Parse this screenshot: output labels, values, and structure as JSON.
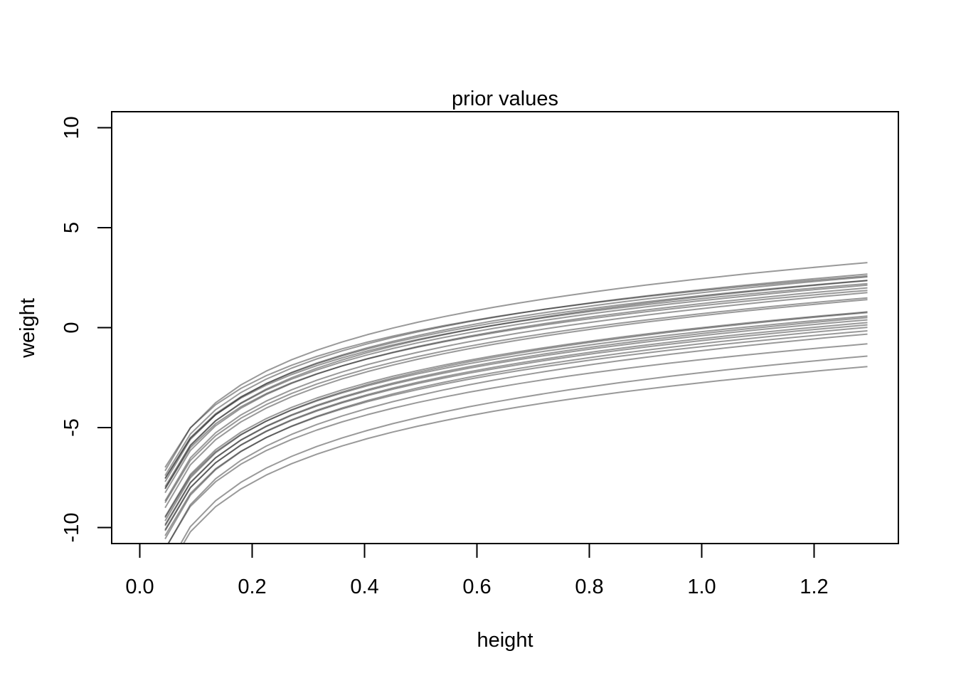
{
  "chart_data": {
    "type": "line",
    "title": "prior values",
    "xlabel": "height",
    "ylabel": "weight",
    "xlim": [
      -0.05,
      1.35
    ],
    "ylim": [
      -10.8,
      10.8
    ],
    "x_ticks": [
      0.0,
      0.2,
      0.4,
      0.6,
      0.8,
      1.0,
      1.2
    ],
    "x_tick_labels": [
      "0.0",
      "0.2",
      "0.4",
      "0.6",
      "0.8",
      "1.0",
      "1.2"
    ],
    "y_ticks": [
      -10,
      -5,
      0,
      5,
      10
    ],
    "y_tick_labels": [
      "-10",
      "-5",
      "0",
      "5",
      "10"
    ],
    "grid": false,
    "legend": "none",
    "line_color": "#000000",
    "line_opacity": 0.4,
    "x": [
      0.045,
      0.09,
      0.135,
      0.18,
      0.225,
      0.27,
      0.315,
      0.36,
      0.405,
      0.45,
      0.495,
      0.54,
      0.585,
      0.63,
      0.675,
      0.72,
      0.765,
      0.81,
      0.855,
      0.9,
      0.945,
      0.99,
      1.035,
      1.08,
      1.125,
      1.17,
      1.215,
      1.26,
      1.295
    ],
    "series_form": "weight = a + b * log(height)",
    "series": [
      {
        "a": 2.45,
        "b": 3.1
      },
      {
        "a": 1.85,
        "b": 2.85
      },
      {
        "a": 1.9,
        "b": 3.0
      },
      {
        "a": 1.75,
        "b": 3.05
      },
      {
        "a": 1.6,
        "b": 2.95
      },
      {
        "a": 1.55,
        "b": 3.1
      },
      {
        "a": 1.45,
        "b": 2.9
      },
      {
        "a": 1.35,
        "b": 3.0
      },
      {
        "a": 1.2,
        "b": 3.05
      },
      {
        "a": 1.1,
        "b": 2.95
      },
      {
        "a": 0.95,
        "b": 3.1
      },
      {
        "a": 0.7,
        "b": 3.05
      },
      {
        "a": 0.6,
        "b": 3.1
      },
      {
        "a": 0.0,
        "b": 3.05
      },
      {
        "a": -0.05,
        "b": 3.1
      },
      {
        "a": -0.2,
        "b": 3.0
      },
      {
        "a": -0.3,
        "b": 3.1
      },
      {
        "a": -0.4,
        "b": 3.05
      },
      {
        "a": -0.55,
        "b": 3.1
      },
      {
        "a": -0.65,
        "b": 3.05
      },
      {
        "a": -0.8,
        "b": 3.15
      },
      {
        "a": -0.95,
        "b": 3.05
      },
      {
        "a": -1.15,
        "b": 3.2
      },
      {
        "a": -1.6,
        "b": 3.05
      },
      {
        "a": -2.25,
        "b": 3.2
      },
      {
        "a": -2.75,
        "b": 3.1
      }
    ]
  }
}
